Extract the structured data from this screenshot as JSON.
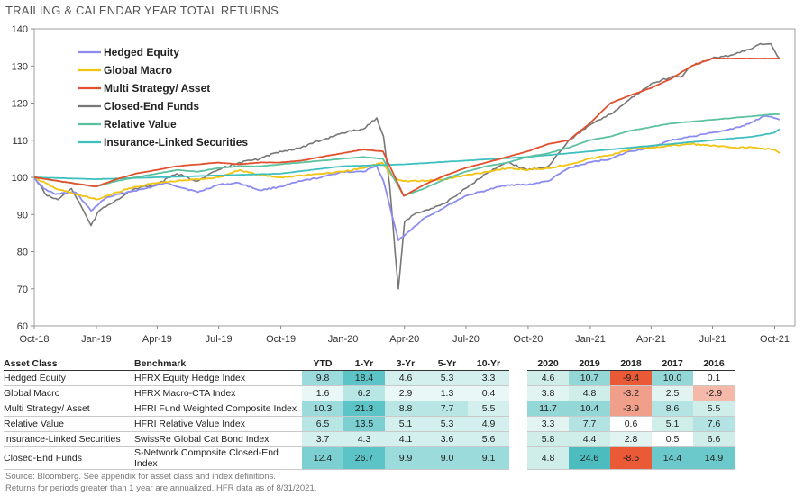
{
  "title": "TRAILING & CALENDAR YEAR TOTAL RETURNS",
  "chart_data": {
    "type": "line",
    "ylim": [
      60,
      140
    ],
    "yticks": [
      60,
      70,
      80,
      90,
      100,
      110,
      120,
      130,
      140
    ],
    "xlim": [
      "2018-10-01",
      "2021-10-31"
    ],
    "xticks": [
      {
        "date": "2018-10-01",
        "label": "Oct-18"
      },
      {
        "date": "2019-01-01",
        "label": "Jan-19"
      },
      {
        "date": "2019-04-01",
        "label": "Apr-19"
      },
      {
        "date": "2019-07-01",
        "label": "Jul-19"
      },
      {
        "date": "2019-10-01",
        "label": "Oct-19"
      },
      {
        "date": "2020-01-01",
        "label": "Jan-20"
      },
      {
        "date": "2020-04-01",
        "label": "Apr-20"
      },
      {
        "date": "2020-07-01",
        "label": "Jul-20"
      },
      {
        "date": "2020-10-01",
        "label": "Oct-20"
      },
      {
        "date": "2021-01-01",
        "label": "Jan-21"
      },
      {
        "date": "2021-04-01",
        "label": "Apr-21"
      },
      {
        "date": "2021-07-01",
        "label": "Jul-21"
      },
      {
        "date": "2021-10-01",
        "label": "Oct-21"
      }
    ],
    "legend_position": "top-left",
    "grid": false,
    "series": [
      {
        "name": "Hedged Equity",
        "color": "#8c8cf0",
        "points": [
          [
            "2018-10-01",
            100
          ],
          [
            "2018-10-15",
            97
          ],
          [
            "2018-11-01",
            95.5
          ],
          [
            "2018-12-01",
            96
          ],
          [
            "2018-12-24",
            91
          ],
          [
            "2019-01-15",
            94.5
          ],
          [
            "2019-02-15",
            96
          ],
          [
            "2019-03-15",
            97
          ],
          [
            "2019-04-15",
            98.5
          ],
          [
            "2019-05-31",
            96
          ],
          [
            "2019-06-30",
            98
          ],
          [
            "2019-07-31",
            98.5
          ],
          [
            "2019-08-31",
            96.5
          ],
          [
            "2019-09-30",
            97.5
          ],
          [
            "2019-10-31",
            99
          ],
          [
            "2019-11-30",
            100
          ],
          [
            "2019-12-31",
            101.5
          ],
          [
            "2020-01-31",
            101.5
          ],
          [
            "2020-02-20",
            103
          ],
          [
            "2020-03-01",
            99
          ],
          [
            "2020-03-23",
            83
          ],
          [
            "2020-04-30",
            89
          ],
          [
            "2020-05-31",
            92
          ],
          [
            "2020-06-30",
            95
          ],
          [
            "2020-07-31",
            96.5
          ],
          [
            "2020-08-31",
            98
          ],
          [
            "2020-09-30",
            98
          ],
          [
            "2020-10-31",
            99
          ],
          [
            "2020-11-30",
            102.5
          ],
          [
            "2020-12-31",
            104
          ],
          [
            "2021-01-31",
            105
          ],
          [
            "2021-02-28",
            107
          ],
          [
            "2021-03-31",
            108
          ],
          [
            "2021-04-30",
            110
          ],
          [
            "2021-05-31",
            111
          ],
          [
            "2021-06-30",
            112
          ],
          [
            "2021-07-31",
            113
          ],
          [
            "2021-08-31",
            115
          ],
          [
            "2021-09-15",
            116.5
          ],
          [
            "2021-09-30",
            116
          ],
          [
            "2021-10-08",
            115.5
          ]
        ]
      },
      {
        "name": "Global Macro",
        "color": "#f2c311",
        "points": [
          [
            "2018-10-01",
            100
          ],
          [
            "2018-11-01",
            97
          ],
          [
            "2018-12-01",
            95.5
          ],
          [
            "2019-01-01",
            94
          ],
          [
            "2019-02-01",
            96
          ],
          [
            "2019-03-01",
            97.5
          ],
          [
            "2019-04-01",
            98.5
          ],
          [
            "2019-05-01",
            99
          ],
          [
            "2019-06-01",
            99.5
          ],
          [
            "2019-07-01",
            100
          ],
          [
            "2019-08-01",
            102
          ],
          [
            "2019-09-01",
            100.5
          ],
          [
            "2019-10-01",
            100
          ],
          [
            "2019-11-01",
            100.5
          ],
          [
            "2019-12-01",
            101
          ],
          [
            "2020-01-01",
            101.5
          ],
          [
            "2020-02-01",
            102.5
          ],
          [
            "2020-02-28",
            104
          ],
          [
            "2020-03-15",
            100
          ],
          [
            "2020-03-31",
            99
          ],
          [
            "2020-04-30",
            99
          ],
          [
            "2020-05-31",
            99.5
          ],
          [
            "2020-06-30",
            100.5
          ],
          [
            "2020-07-31",
            101.5
          ],
          [
            "2020-08-31",
            102.5
          ],
          [
            "2020-09-30",
            102
          ],
          [
            "2020-10-31",
            102.5
          ],
          [
            "2020-11-30",
            103.5
          ],
          [
            "2020-12-31",
            105
          ],
          [
            "2021-01-31",
            106
          ],
          [
            "2021-02-28",
            107.5
          ],
          [
            "2021-03-31",
            108
          ],
          [
            "2021-04-30",
            108.5
          ],
          [
            "2021-05-31",
            109
          ],
          [
            "2021-06-30",
            108.5
          ],
          [
            "2021-07-31",
            108
          ],
          [
            "2021-08-31",
            108
          ],
          [
            "2021-09-30",
            107.5
          ],
          [
            "2021-10-08",
            106.5
          ]
        ]
      },
      {
        "name": "Multi Strategy/ Asset",
        "color": "#e2502e",
        "points": [
          [
            "2018-10-01",
            100
          ],
          [
            "2018-12-31",
            97.5
          ],
          [
            "2019-01-31",
            99.5
          ],
          [
            "2019-02-28",
            101
          ],
          [
            "2019-03-31",
            102
          ],
          [
            "2019-04-30",
            103
          ],
          [
            "2019-05-31",
            103.5
          ],
          [
            "2019-06-30",
            104
          ],
          [
            "2019-07-31",
            103.5
          ],
          [
            "2019-08-31",
            104
          ],
          [
            "2019-09-30",
            104
          ],
          [
            "2019-10-31",
            104.5
          ],
          [
            "2019-11-30",
            105.5
          ],
          [
            "2019-12-31",
            106.5
          ],
          [
            "2020-01-31",
            107.5
          ],
          [
            "2020-02-29",
            107
          ],
          [
            "2020-03-31",
            95
          ],
          [
            "2020-04-30",
            98
          ],
          [
            "2020-05-31",
            100.5
          ],
          [
            "2020-06-30",
            102.5
          ],
          [
            "2020-07-31",
            104
          ],
          [
            "2020-08-31",
            105.5
          ],
          [
            "2020-09-30",
            107
          ],
          [
            "2020-10-31",
            109
          ],
          [
            "2020-11-30",
            110
          ],
          [
            "2020-12-31",
            114.5
          ],
          [
            "2021-01-31",
            120
          ],
          [
            "2021-02-28",
            122
          ],
          [
            "2021-03-31",
            124
          ],
          [
            "2021-04-30",
            126.5
          ],
          [
            "2021-05-31",
            130
          ],
          [
            "2021-06-30",
            132
          ],
          [
            "2021-07-31",
            132
          ],
          [
            "2021-08-31",
            132
          ],
          [
            "2021-09-30",
            132
          ],
          [
            "2021-10-08",
            132
          ]
        ]
      },
      {
        "name": "Closed-End Funds",
        "color": "#777777",
        "points": [
          [
            "2018-10-01",
            100
          ],
          [
            "2018-10-20",
            95
          ],
          [
            "2018-11-05",
            94
          ],
          [
            "2018-11-25",
            97
          ],
          [
            "2018-12-10",
            92
          ],
          [
            "2018-12-24",
            87
          ],
          [
            "2019-01-05",
            91
          ],
          [
            "2019-01-31",
            94
          ],
          [
            "2019-02-28",
            97
          ],
          [
            "2019-03-31",
            98
          ],
          [
            "2019-04-30",
            101
          ],
          [
            "2019-05-31",
            99
          ],
          [
            "2019-06-30",
            102
          ],
          [
            "2019-07-31",
            104
          ],
          [
            "2019-08-31",
            105
          ],
          [
            "2019-09-30",
            107
          ],
          [
            "2019-10-31",
            108
          ],
          [
            "2019-11-30",
            110
          ],
          [
            "2019-12-31",
            112
          ],
          [
            "2020-01-31",
            113
          ],
          [
            "2020-02-20",
            116
          ],
          [
            "2020-03-01",
            111
          ],
          [
            "2020-03-10",
            98
          ],
          [
            "2020-03-18",
            80
          ],
          [
            "2020-03-23",
            70
          ],
          [
            "2020-04-01",
            88
          ],
          [
            "2020-04-15",
            90
          ],
          [
            "2020-04-30",
            91
          ],
          [
            "2020-05-31",
            93
          ],
          [
            "2020-06-30",
            97
          ],
          [
            "2020-07-31",
            101
          ],
          [
            "2020-08-31",
            104
          ],
          [
            "2020-09-30",
            102
          ],
          [
            "2020-10-31",
            103
          ],
          [
            "2020-11-30",
            110
          ],
          [
            "2020-12-31",
            114
          ],
          [
            "2021-01-31",
            117
          ],
          [
            "2021-02-28",
            121
          ],
          [
            "2021-03-31",
            125
          ],
          [
            "2021-04-30",
            127
          ],
          [
            "2021-05-15",
            127
          ],
          [
            "2021-05-31",
            130
          ],
          [
            "2021-06-30",
            132
          ],
          [
            "2021-07-31",
            133
          ],
          [
            "2021-08-31",
            135
          ],
          [
            "2021-09-10",
            136
          ],
          [
            "2021-09-25",
            136
          ],
          [
            "2021-10-01",
            134
          ],
          [
            "2021-10-08",
            132
          ]
        ]
      },
      {
        "name": "Relative Value",
        "color": "#5cc19e",
        "points": [
          [
            "2018-10-01",
            100
          ],
          [
            "2018-12-31",
            97.5
          ],
          [
            "2019-01-31",
            99
          ],
          [
            "2019-02-28",
            100
          ],
          [
            "2019-03-31",
            101
          ],
          [
            "2019-04-30",
            102
          ],
          [
            "2019-05-31",
            101.5
          ],
          [
            "2019-06-30",
            102.5
          ],
          [
            "2019-07-31",
            103
          ],
          [
            "2019-08-31",
            103
          ],
          [
            "2019-09-30",
            103.5
          ],
          [
            "2019-10-31",
            104
          ],
          [
            "2019-11-30",
            104.5
          ],
          [
            "2019-12-31",
            105
          ],
          [
            "2020-01-31",
            105.5
          ],
          [
            "2020-02-29",
            105
          ],
          [
            "2020-03-31",
            95
          ],
          [
            "2020-04-30",
            97
          ],
          [
            "2020-05-31",
            99.5
          ],
          [
            "2020-06-30",
            101.5
          ],
          [
            "2020-07-31",
            103
          ],
          [
            "2020-08-31",
            104
          ],
          [
            "2020-09-30",
            105.5
          ],
          [
            "2020-10-31",
            106.5
          ],
          [
            "2020-11-30",
            108
          ],
          [
            "2020-12-31",
            110
          ],
          [
            "2021-01-31",
            111
          ],
          [
            "2021-02-28",
            112.5
          ],
          [
            "2021-03-31",
            113.5
          ],
          [
            "2021-04-30",
            114.5
          ],
          [
            "2021-05-31",
            115
          ],
          [
            "2021-06-30",
            115.5
          ],
          [
            "2021-07-31",
            116
          ],
          [
            "2021-08-31",
            116.5
          ],
          [
            "2021-09-30",
            117
          ],
          [
            "2021-10-08",
            117
          ]
        ]
      },
      {
        "name": "Insurance-Linked Securities",
        "color": "#3dbfbf",
        "points": [
          [
            "2018-10-01",
            100
          ],
          [
            "2018-12-31",
            99.5
          ],
          [
            "2019-03-31",
            100
          ],
          [
            "2019-06-30",
            100.5
          ],
          [
            "2019-09-30",
            101
          ],
          [
            "2019-12-31",
            103
          ],
          [
            "2020-03-31",
            103.5
          ],
          [
            "2020-06-30",
            104.5
          ],
          [
            "2020-09-30",
            105.5
          ],
          [
            "2020-12-31",
            107
          ],
          [
            "2021-03-31",
            108.5
          ],
          [
            "2021-06-30",
            110
          ],
          [
            "2021-08-31",
            111
          ],
          [
            "2021-09-30",
            112
          ],
          [
            "2021-10-08",
            113
          ]
        ]
      }
    ]
  },
  "table": {
    "headers": [
      "Asset Class",
      "Benchmark",
      "YTD",
      "1-Yr",
      "3-Yr",
      "5-Yr",
      "10-Yr",
      "2020",
      "2019",
      "2018",
      "2017",
      "2016"
    ],
    "rows": [
      {
        "asset": "Hedged Equity",
        "benchmark": "HFRX Equity Hedge Index",
        "values": [
          "9.8",
          "18.4",
          "4.6",
          "5.3",
          "3.3",
          "4.6",
          "10.7",
          "-9.4",
          "10.0",
          "0.1"
        ]
      },
      {
        "asset": "Global Macro",
        "benchmark": "HFRX Macro-CTA Index",
        "values": [
          "1.6",
          "6.2",
          "2.9",
          "1.3",
          "0.4",
          "3.8",
          "4.8",
          "-3.2",
          "2.5",
          "-2.9"
        ]
      },
      {
        "asset": "Multi Strategy/ Asset",
        "benchmark": "HFRI Fund Weighted Composite Index",
        "values": [
          "10.3",
          "21.3",
          "8.8",
          "7.7",
          "5.5",
          "11.7",
          "10.4",
          "-3.9",
          "8.6",
          "5.5"
        ]
      },
      {
        "asset": "Relative Value",
        "benchmark": "HFRI Relative Value Index",
        "values": [
          "6.5",
          "13.5",
          "5.1",
          "5.3",
          "4.9",
          "3.3",
          "7.7",
          "0.6",
          "5.1",
          "7.6"
        ]
      },
      {
        "asset": "Insurance-Linked Securities",
        "benchmark": "SwissRe Global Cat Bond Index",
        "values": [
          "3.7",
          "4.3",
          "4.1",
          "3.6",
          "5.6",
          "5.8",
          "4.4",
          "2.8",
          "0.5",
          "6.6"
        ]
      },
      {
        "asset": "Closed-End Funds",
        "benchmark": "S-Network Composite Closed-End Index",
        "values": [
          "12.4",
          "26.7",
          "9.9",
          "9.0",
          "9.1",
          "4.8",
          "24.6",
          "-8.5",
          "14.4",
          "14.9"
        ]
      }
    ]
  },
  "footnotes": {
    "source": "Source: Bloomberg. See appendix for asset class and index definitions.",
    "note": "Returns for periods greater than 1 year are annualized. HFR data as of 8/31/2021."
  }
}
